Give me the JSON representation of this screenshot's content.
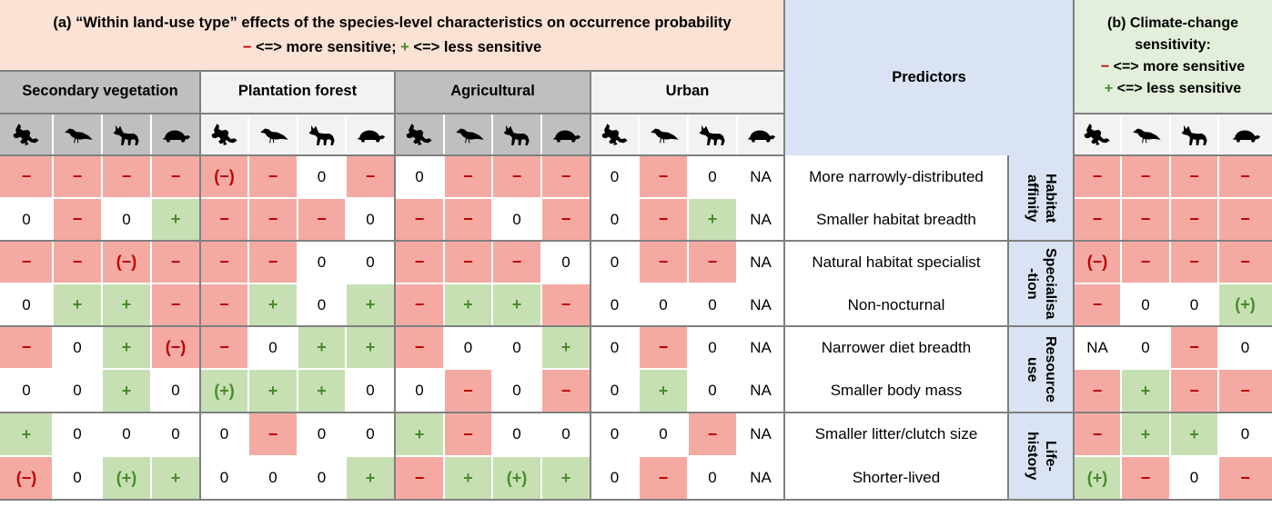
{
  "header_a": {
    "title": "(a) “Within land-use type” effects of the species-level characteristics on occurrence probability",
    "legend_minus_sym": "−",
    "legend_minus_text": " <=> more sensitive; ",
    "legend_plus_sym": "+",
    "legend_plus_text": " <=> less sensitive"
  },
  "header_predictors": "Predictors",
  "header_b": {
    "title_line1": "(b) Climate-change",
    "title_line2": "sensitivity:",
    "legend_minus_sym": "−",
    "legend_minus_text": " <=> more sensitive",
    "legend_plus_sym": "+",
    "legend_plus_text": " <=> less sensitive"
  },
  "land_use_groups": [
    "Secondary vegetation",
    "Plantation forest",
    "Agricultural",
    "Urban"
  ],
  "taxa_icons": [
    "frog-icon",
    "bird-icon",
    "fox-icon",
    "turtle-icon"
  ],
  "categories": [
    {
      "label": "Habitat\naffinity"
    },
    {
      "label": "Specialisa\n-tion"
    },
    {
      "label": "Resource\nuse"
    },
    {
      "label": "Life-\nhistory"
    }
  ],
  "rows": [
    {
      "predictor": "More narrowly-distributed",
      "cells": [
        "−",
        "−",
        "−",
        "−",
        "(−)",
        "−",
        "0",
        "−",
        "0",
        "−",
        "−",
        "−",
        "0",
        "−",
        "0",
        "NA"
      ],
      "climate": [
        "−",
        "−",
        "−",
        "−"
      ]
    },
    {
      "predictor": "Smaller habitat breadth",
      "cells": [
        "0",
        "−",
        "0",
        "+",
        "−",
        "−",
        "−",
        "0",
        "−",
        "−",
        "0",
        "−",
        "0",
        "−",
        "+",
        "NA"
      ],
      "climate": [
        "−",
        "−",
        "−",
        "−"
      ]
    },
    {
      "predictor": "Natural habitat specialist",
      "cells": [
        "−",
        "−",
        "(−)",
        "−",
        "−",
        "−",
        "0",
        "0",
        "−",
        "−",
        "−",
        "0",
        "0",
        "−",
        "−",
        "NA"
      ],
      "climate": [
        "(−)",
        "−",
        "−",
        "−"
      ]
    },
    {
      "predictor": "Non-nocturnal",
      "cells": [
        "0",
        "+",
        "+",
        "−",
        "−",
        "+",
        "0",
        "+",
        "−",
        "+",
        "+",
        "−",
        "0",
        "0",
        "0",
        "NA"
      ],
      "climate": [
        "−",
        "0",
        "0",
        "(+)"
      ]
    },
    {
      "predictor": "Narrower diet breadth",
      "cells": [
        "−",
        "0",
        "+",
        "(−)",
        "−",
        "0",
        "+",
        "+",
        "−",
        "0",
        "0",
        "+",
        "0",
        "−",
        "0",
        "NA"
      ],
      "climate": [
        "NA",
        "0",
        "−",
        "0"
      ]
    },
    {
      "predictor": "Smaller body mass",
      "cells": [
        "0",
        "0",
        "+",
        "0",
        "(+)",
        "+",
        "+",
        "0",
        "0",
        "−",
        "0",
        "−",
        "0",
        "+",
        "0",
        "NA"
      ],
      "climate": [
        "−",
        "+",
        "−",
        "−"
      ]
    },
    {
      "predictor": "Smaller litter/clutch size",
      "cells": [
        "+",
        "0",
        "0",
        "0",
        "0",
        "−",
        "0",
        "0",
        "+",
        "−",
        "0",
        "0",
        "0",
        "0",
        "−",
        "NA"
      ],
      "climate": [
        "−",
        "+",
        "+",
        "0"
      ]
    },
    {
      "predictor": "Shorter-lived",
      "cells": [
        "(−)",
        "0",
        "(+)",
        "+",
        "0",
        "0",
        "0",
        "+",
        "−",
        "+",
        "(+)",
        "+",
        "0",
        "−",
        "0",
        "NA"
      ],
      "climate": [
        "(+)",
        "−",
        "0",
        "−"
      ]
    }
  ],
  "colors": {
    "negative_bg": "#f4aaa3",
    "positive_bg": "#c6e0b4",
    "negative_text": "#c00000",
    "positive_text": "#4a8a2a",
    "header_a_bg": "#fbe2d5",
    "header_b_bg": "#e2efda",
    "predictors_bg": "#dae3f3"
  }
}
